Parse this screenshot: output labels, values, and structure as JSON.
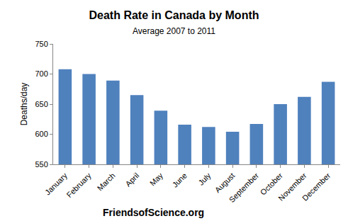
{
  "chart_data": {
    "type": "bar",
    "title": "Death Rate in Canada by Month",
    "subtitle": "Average 2007 to 2011",
    "y_label": "Deaths/day",
    "annotations": [
      "FriendsofScience.org"
    ],
    "categories": [
      "January",
      "February",
      "March",
      "April",
      "May",
      "June",
      "July",
      "August",
      "September",
      "October",
      "November",
      "December"
    ],
    "values": [
      708,
      700,
      689,
      665,
      639,
      616,
      612,
      604,
      617,
      650,
      662,
      687
    ],
    "color": "#4f81bd",
    "ylim": [
      550,
      750
    ],
    "yticks": [
      550,
      600,
      650,
      700,
      750
    ],
    "grid": false
  }
}
